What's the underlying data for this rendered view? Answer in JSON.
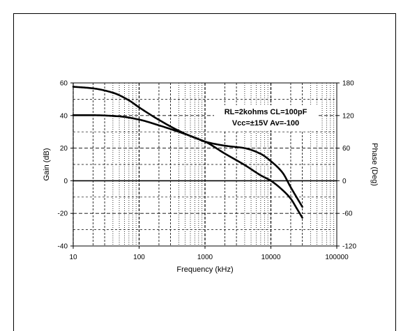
{
  "chart_data": {
    "type": "line",
    "title": "",
    "xlabel": "Frequency (kHz)",
    "ylabel_left": "Gain (dB)",
    "ylabel_right": "Phase (Deg)",
    "x_scale": "log",
    "xlim": [
      10,
      100000
    ],
    "ylim_left": [
      -40,
      60
    ],
    "ylim_right": [
      -120,
      180
    ],
    "x_ticks": [
      "10",
      "100",
      "1000",
      "10000",
      "100000"
    ],
    "y_ticks_left": [
      "60",
      "40",
      "20",
      "0",
      "-20",
      "-40"
    ],
    "y_ticks_right": [
      "180",
      "120",
      "60",
      "0",
      "-60",
      "-120"
    ],
    "grid": true,
    "annotation": [
      "RL=2kohms  CL=100pF",
      "Vcc=±15V  Av=-100"
    ],
    "series": [
      {
        "axis": "left",
        "x": [
          10,
          20,
          50,
          100,
          200,
          400,
          700,
          1000,
          2000,
          4000,
          7000,
          10000,
          15000,
          20000,
          30000
        ],
        "values": [
          40.2,
          40.2,
          39.5,
          37.5,
          34,
          30,
          26.5,
          24,
          21.5,
          20,
          16.5,
          12,
          5,
          -4,
          -16
        ]
      },
      {
        "axis": "right",
        "x": [
          10,
          20,
          40,
          70,
          100,
          200,
          400,
          700,
          1000,
          2000,
          4000,
          7000,
          10000,
          15000,
          20000,
          25000,
          30000
        ],
        "values": [
          173,
          170,
          162,
          148,
          135,
          112,
          92,
          79,
          72,
          50,
          29,
          10,
          0,
          -17,
          -33,
          -52,
          -68
        ]
      }
    ],
    "colors": {
      "line": "#000000",
      "grid": "#000000",
      "background": "#ffffff"
    }
  }
}
